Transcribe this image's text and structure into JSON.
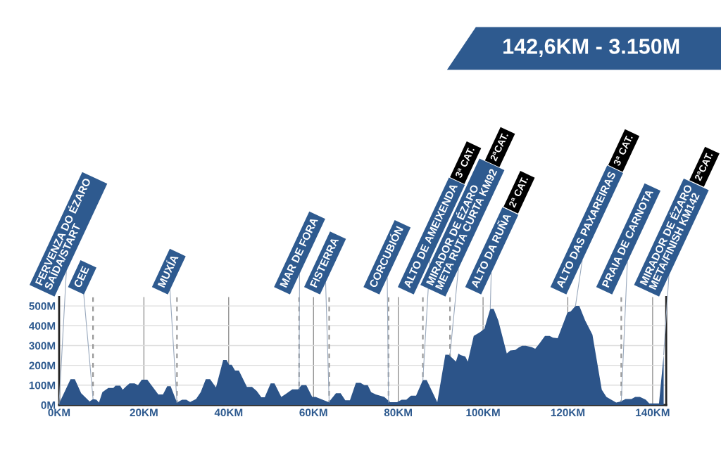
{
  "chart_data": {
    "type": "area",
    "title": "142,6KM - 3.150M",
    "series": [
      {
        "color": "#2c5489",
        "x": [
          0,
          2.7,
          3.7,
          5.2,
          7.2,
          8,
          8.8,
          9.4,
          10.2,
          11.6,
          12.8,
          13.3,
          14.4,
          15,
          15.8,
          16.6,
          17.8,
          18.6,
          19.5,
          20.8,
          23.4,
          24.5,
          25.5,
          26.3,
          27.8,
          29,
          30,
          30.9,
          32.3,
          33.4,
          34.6,
          35.6,
          37,
          38.7,
          39.5,
          40.1,
          40.7,
          41.5,
          42.4,
          44.3,
          45.5,
          46.6,
          47.7,
          48.5,
          49.9,
          50.8,
          52.4,
          53.3,
          55,
          56.3,
          57.2,
          58.3,
          59.7,
          60.5,
          63.6,
          65.3,
          66.4,
          67.5,
          68.6,
          70,
          71.1,
          72,
          72.8,
          73.6,
          74.7,
          76.7,
          78.1,
          79.7,
          80.8,
          81.9,
          83,
          84.2,
          85.8,
          86.7,
          89.2,
          91.1,
          91.9,
          93.6,
          94.2,
          94.7,
          95.8,
          96.4,
          97.8,
          99.2,
          100.3,
          101.7,
          102.5,
          103.6,
          105.6,
          106.4,
          107.6,
          108.4,
          109.2,
          110.1,
          111.5,
          112.3,
          113.4,
          114.6,
          115.7,
          116.5,
          117.6,
          119.9,
          120.7,
          121.8,
          122.7,
          124.1,
          125.8,
          128,
          129.1,
          131.4,
          132.5,
          133.6,
          135,
          135.9,
          137,
          138.4,
          139.2,
          141.5,
          142.6
        ],
        "values": [
          8,
          130,
          130,
          59,
          18,
          30,
          27,
          12,
          65,
          86,
          86,
          98,
          98,
          77,
          94,
          109,
          109,
          100,
          128,
          128,
          53,
          53,
          95,
          95,
          12,
          27,
          27,
          15,
          30,
          65,
          130,
          130,
          89,
          227,
          227,
          203,
          203,
          174,
          174,
          91,
          91,
          71,
          39,
          39,
          109,
          109,
          41,
          53,
          79,
          79,
          100,
          100,
          41,
          41,
          14,
          59,
          59,
          24,
          24,
          112,
          112,
          100,
          100,
          65,
          53,
          41,
          14,
          14,
          27,
          27,
          47,
          47,
          126,
          126,
          14,
          254,
          254,
          219,
          260,
          252,
          245,
          219,
          349,
          366,
          384,
          485,
          485,
          426,
          260,
          275,
          278,
          290,
          299,
          299,
          292,
          284,
          313,
          349,
          349,
          340,
          337,
          467,
          473,
          500,
          500,
          426,
          355,
          77,
          41,
          12,
          18,
          30,
          30,
          41,
          41,
          27,
          8,
          8,
          254
        ]
      }
    ],
    "xlim": [
      0,
      143.2
    ],
    "ylim": [
      0,
      545
    ],
    "xticks": [
      {
        "value": 0,
        "label": "0KM"
      },
      {
        "value": 20,
        "label": "20KM"
      },
      {
        "value": 40,
        "label": "40KM"
      },
      {
        "value": 60,
        "label": "60KM"
      },
      {
        "value": 80,
        "label": "80KM"
      },
      {
        "value": 100,
        "label": "100KM"
      },
      {
        "value": 120,
        "label": "120KM"
      },
      {
        "value": 140,
        "label": "140KM"
      }
    ],
    "yticks": [
      {
        "value": 0,
        "label": "0M"
      },
      {
        "value": 100,
        "label": "100M"
      },
      {
        "value": 200,
        "label": "200M"
      },
      {
        "value": 300,
        "label": "300M"
      },
      {
        "value": 400,
        "label": "400M"
      },
      {
        "value": 500,
        "label": "500M"
      }
    ],
    "grid": true,
    "ref_lines": [
      {
        "axis": "x",
        "value": 8,
        "line_style": "dashed",
        "color": "#999999"
      },
      {
        "axis": "x",
        "value": 27.8,
        "line_style": "dashed",
        "color": "#999999"
      },
      {
        "axis": "x",
        "value": 56.6,
        "line_style": "dashed",
        "color": "#999999"
      },
      {
        "axis": "x",
        "value": 63.7,
        "line_style": "dashed",
        "color": "#999999"
      },
      {
        "axis": "x",
        "value": 77.7,
        "line_style": "dashed",
        "color": "#999999"
      },
      {
        "axis": "x",
        "value": 85.8,
        "line_style": "dashed",
        "color": "#999999"
      },
      {
        "axis": "x",
        "value": 92.2,
        "line_style": "dashed",
        "color": "#999999"
      },
      {
        "axis": "x",
        "value": 132.6,
        "line_style": "dashed",
        "color": "#999999"
      }
    ],
    "annotations": [
      {
        "text": "FERVENZA DO ÉZARO\nSAÍDA/START",
        "x": 0,
        "y": 8
      },
      {
        "text": "CEE",
        "x": 8,
        "y": 30
      },
      {
        "text": "MUXÍA",
        "x": 27.8,
        "y": 12
      },
      {
        "text": "MAR DE FORA",
        "x": 56.6,
        "y": 79
      },
      {
        "text": "FISTERRA",
        "x": 63.7,
        "y": 14
      },
      {
        "text": "CORCUBIÓN",
        "x": 77.7,
        "y": 14
      },
      {
        "text": "ALTO DE AMEIXENDA",
        "x": 85.8,
        "y": 126
      },
      "3ª CAT.",
      {
        "text": "MIRADOR DE ÉZARO\nMETA RUTA CURTA KM92",
        "x": 92.2,
        "y": 254
      },
      "2ªCAT.",
      {
        "text": "ALTO DA RUÑA",
        "x": 101.7,
        "y": 485
      },
      "2ª CAT.",
      {
        "text": "ALTO DAS PAXAREIRAS",
        "x": 121.8,
        "y": 500
      },
      "3ª CAT.",
      {
        "text": "PRAIA DE CARNOTA",
        "x": 132.6,
        "y": 18
      },
      {
        "text": "MIRADOR DE ÉZARO\nMETA/FINISH KM142",
        "x": 142.6,
        "y": 254
      },
      "2ªCAT."
    ]
  }
}
